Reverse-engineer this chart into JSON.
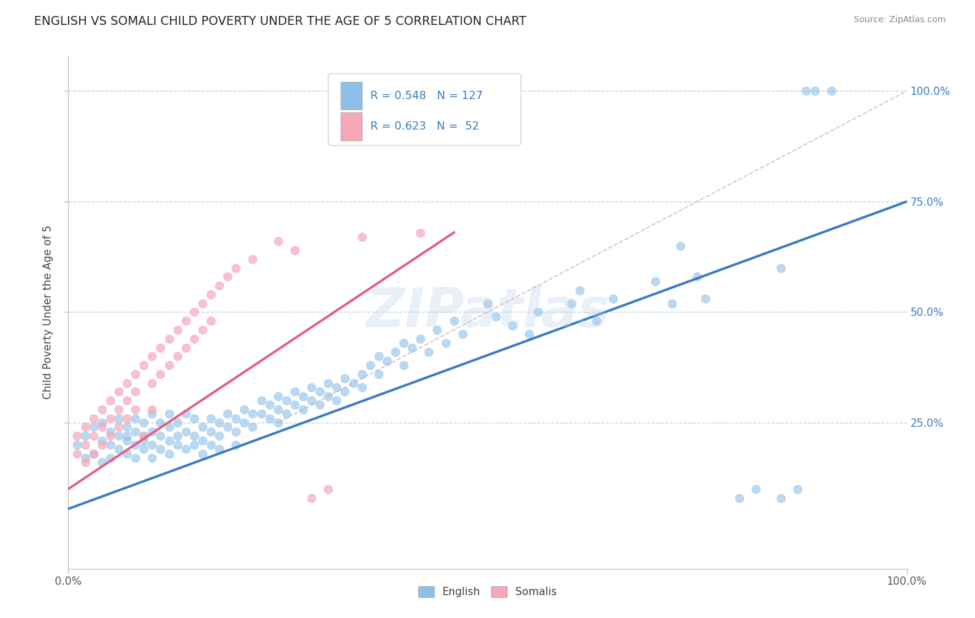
{
  "title": "ENGLISH VS SOMALI CHILD POVERTY UNDER THE AGE OF 5 CORRELATION CHART",
  "source": "Source: ZipAtlas.com",
  "ylabel": "Child Poverty Under the Age of 5",
  "xmin": 0.0,
  "xmax": 1.0,
  "ymin": -0.08,
  "ymax": 1.08,
  "xtick_labels": [
    "0.0%",
    "100.0%"
  ],
  "ytick_labels": [
    "25.0%",
    "50.0%",
    "75.0%",
    "100.0%"
  ],
  "ytick_positions": [
    0.25,
    0.5,
    0.75,
    1.0
  ],
  "english_color": "#8dbfe8",
  "somali_color": "#f4a8b8",
  "english_line_color": "#3a7bbf",
  "somali_line_color": "#e06080",
  "diagonal_color": "#d0b0b8",
  "watermark_color": "#b8d0ea",
  "R_english": 0.548,
  "N_english": 127,
  "R_somali": 0.623,
  "N_somali": 52,
  "eng_line_x0": 0.0,
  "eng_line_y0": 0.055,
  "eng_line_x1": 1.0,
  "eng_line_y1": 0.75,
  "som_line_x0": 0.0,
  "som_line_y0": 0.1,
  "som_line_x1": 0.46,
  "som_line_y1": 0.68,
  "diag_line_x0": 0.25,
  "diag_line_y0": 0.25,
  "diag_line_x1": 1.0,
  "diag_line_y1": 1.0,
  "english_scatter": [
    [
      0.01,
      0.2
    ],
    [
      0.02,
      0.22
    ],
    [
      0.02,
      0.17
    ],
    [
      0.03,
      0.24
    ],
    [
      0.03,
      0.18
    ],
    [
      0.04,
      0.21
    ],
    [
      0.04,
      0.16
    ],
    [
      0.04,
      0.25
    ],
    [
      0.05,
      0.2
    ],
    [
      0.05,
      0.23
    ],
    [
      0.05,
      0.17
    ],
    [
      0.06,
      0.22
    ],
    [
      0.06,
      0.19
    ],
    [
      0.06,
      0.26
    ],
    [
      0.07,
      0.21
    ],
    [
      0.07,
      0.24
    ],
    [
      0.07,
      0.18
    ],
    [
      0.07,
      0.22
    ],
    [
      0.08,
      0.2
    ],
    [
      0.08,
      0.23
    ],
    [
      0.08,
      0.17
    ],
    [
      0.08,
      0.26
    ],
    [
      0.09,
      0.22
    ],
    [
      0.09,
      0.19
    ],
    [
      0.09,
      0.25
    ],
    [
      0.09,
      0.21
    ],
    [
      0.1,
      0.23
    ],
    [
      0.1,
      0.2
    ],
    [
      0.1,
      0.17
    ],
    [
      0.1,
      0.27
    ],
    [
      0.11,
      0.22
    ],
    [
      0.11,
      0.19
    ],
    [
      0.11,
      0.25
    ],
    [
      0.12,
      0.21
    ],
    [
      0.12,
      0.18
    ],
    [
      0.12,
      0.24
    ],
    [
      0.12,
      0.27
    ],
    [
      0.13,
      0.22
    ],
    [
      0.13,
      0.2
    ],
    [
      0.13,
      0.25
    ],
    [
      0.14,
      0.23
    ],
    [
      0.14,
      0.19
    ],
    [
      0.14,
      0.27
    ],
    [
      0.15,
      0.22
    ],
    [
      0.15,
      0.2
    ],
    [
      0.15,
      0.26
    ],
    [
      0.16,
      0.24
    ],
    [
      0.16,
      0.21
    ],
    [
      0.16,
      0.18
    ],
    [
      0.17,
      0.23
    ],
    [
      0.17,
      0.26
    ],
    [
      0.17,
      0.2
    ],
    [
      0.18,
      0.25
    ],
    [
      0.18,
      0.22
    ],
    [
      0.18,
      0.19
    ],
    [
      0.19,
      0.27
    ],
    [
      0.19,
      0.24
    ],
    [
      0.2,
      0.26
    ],
    [
      0.2,
      0.23
    ],
    [
      0.2,
      0.2
    ],
    [
      0.21,
      0.28
    ],
    [
      0.21,
      0.25
    ],
    [
      0.22,
      0.27
    ],
    [
      0.22,
      0.24
    ],
    [
      0.23,
      0.3
    ],
    [
      0.23,
      0.27
    ],
    [
      0.24,
      0.29
    ],
    [
      0.24,
      0.26
    ],
    [
      0.25,
      0.31
    ],
    [
      0.25,
      0.28
    ],
    [
      0.25,
      0.25
    ],
    [
      0.26,
      0.3
    ],
    [
      0.26,
      0.27
    ],
    [
      0.27,
      0.32
    ],
    [
      0.27,
      0.29
    ],
    [
      0.28,
      0.31
    ],
    [
      0.28,
      0.28
    ],
    [
      0.29,
      0.33
    ],
    [
      0.29,
      0.3
    ],
    [
      0.3,
      0.32
    ],
    [
      0.3,
      0.29
    ],
    [
      0.31,
      0.34
    ],
    [
      0.31,
      0.31
    ],
    [
      0.32,
      0.33
    ],
    [
      0.32,
      0.3
    ],
    [
      0.33,
      0.35
    ],
    [
      0.33,
      0.32
    ],
    [
      0.34,
      0.34
    ],
    [
      0.35,
      0.36
    ],
    [
      0.35,
      0.33
    ],
    [
      0.36,
      0.38
    ],
    [
      0.37,
      0.4
    ],
    [
      0.37,
      0.36
    ],
    [
      0.38,
      0.39
    ],
    [
      0.39,
      0.41
    ],
    [
      0.4,
      0.43
    ],
    [
      0.4,
      0.38
    ],
    [
      0.41,
      0.42
    ],
    [
      0.42,
      0.44
    ],
    [
      0.43,
      0.41
    ],
    [
      0.44,
      0.46
    ],
    [
      0.45,
      0.43
    ],
    [
      0.46,
      0.48
    ],
    [
      0.47,
      0.45
    ],
    [
      0.5,
      0.52
    ],
    [
      0.51,
      0.49
    ],
    [
      0.53,
      0.47
    ],
    [
      0.55,
      0.45
    ],
    [
      0.56,
      0.5
    ],
    [
      0.6,
      0.52
    ],
    [
      0.61,
      0.55
    ],
    [
      0.63,
      0.48
    ],
    [
      0.65,
      0.53
    ],
    [
      0.7,
      0.57
    ],
    [
      0.72,
      0.52
    ],
    [
      0.75,
      0.58
    ],
    [
      0.76,
      0.53
    ],
    [
      0.8,
      0.08
    ],
    [
      0.82,
      0.1
    ],
    [
      0.85,
      0.08
    ],
    [
      0.87,
      0.1
    ],
    [
      0.88,
      1.0
    ],
    [
      0.89,
      1.0
    ],
    [
      0.91,
      1.0
    ],
    [
      0.73,
      0.65
    ],
    [
      0.85,
      0.6
    ]
  ],
  "somali_scatter": [
    [
      0.01,
      0.22
    ],
    [
      0.01,
      0.18
    ],
    [
      0.02,
      0.24
    ],
    [
      0.02,
      0.2
    ],
    [
      0.02,
      0.16
    ],
    [
      0.03,
      0.26
    ],
    [
      0.03,
      0.22
    ],
    [
      0.03,
      0.18
    ],
    [
      0.04,
      0.28
    ],
    [
      0.04,
      0.24
    ],
    [
      0.04,
      0.2
    ],
    [
      0.05,
      0.3
    ],
    [
      0.05,
      0.26
    ],
    [
      0.05,
      0.22
    ],
    [
      0.06,
      0.32
    ],
    [
      0.06,
      0.28
    ],
    [
      0.06,
      0.24
    ],
    [
      0.07,
      0.34
    ],
    [
      0.07,
      0.3
    ],
    [
      0.07,
      0.26
    ],
    [
      0.08,
      0.36
    ],
    [
      0.08,
      0.32
    ],
    [
      0.08,
      0.28
    ],
    [
      0.09,
      0.38
    ],
    [
      0.09,
      0.22
    ],
    [
      0.1,
      0.4
    ],
    [
      0.1,
      0.34
    ],
    [
      0.1,
      0.28
    ],
    [
      0.11,
      0.42
    ],
    [
      0.11,
      0.36
    ],
    [
      0.12,
      0.44
    ],
    [
      0.12,
      0.38
    ],
    [
      0.13,
      0.46
    ],
    [
      0.13,
      0.4
    ],
    [
      0.14,
      0.48
    ],
    [
      0.14,
      0.42
    ],
    [
      0.15,
      0.5
    ],
    [
      0.15,
      0.44
    ],
    [
      0.16,
      0.52
    ],
    [
      0.16,
      0.46
    ],
    [
      0.17,
      0.54
    ],
    [
      0.17,
      0.48
    ],
    [
      0.18,
      0.56
    ],
    [
      0.19,
      0.58
    ],
    [
      0.2,
      0.6
    ],
    [
      0.22,
      0.62
    ],
    [
      0.25,
      0.66
    ],
    [
      0.27,
      0.64
    ],
    [
      0.29,
      0.08
    ],
    [
      0.31,
      0.1
    ],
    [
      0.35,
      0.67
    ],
    [
      0.42,
      0.68
    ]
  ]
}
